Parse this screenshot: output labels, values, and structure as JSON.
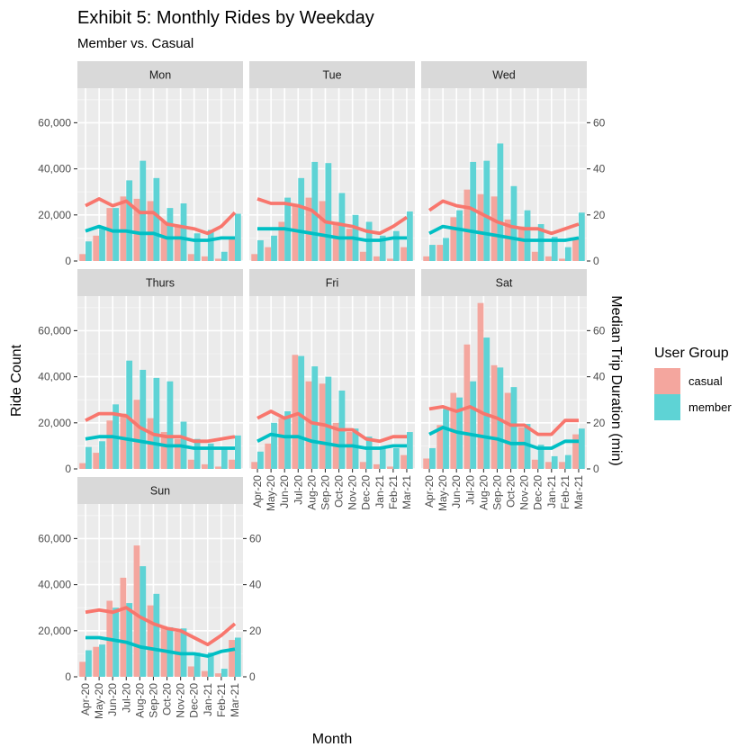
{
  "chart_data": {
    "type": "bar",
    "title": "Exhibit 5: Monthly Rides by Weekday",
    "subtitle": "Member vs. Casual",
    "xlabel": "Month",
    "ylabel": "Ride Count",
    "y2label": "Median Trip Duration (min)",
    "legend_title": "User Group",
    "legend_position": "right",
    "categories": [
      "Apr-20",
      "May-20",
      "Jun-20",
      "Jul-20",
      "Aug-20",
      "Sep-20",
      "Oct-20",
      "Nov-20",
      "Dec-20",
      "Jan-21",
      "Feb-21",
      "Mar-21"
    ],
    "ylim": [
      0,
      75000
    ],
    "y2lim": [
      0,
      75
    ],
    "yticks": [
      0,
      20000,
      40000,
      60000
    ],
    "yticklabels": [
      "0",
      "20,000",
      "40,000",
      "60,000"
    ],
    "y2ticks": [
      0,
      20,
      40,
      60
    ],
    "colors": {
      "casual": "#F8766D",
      "member": "#00BFC4",
      "casual_bar": "#F4A69E",
      "member_bar": "#5ED3D5"
    },
    "groups": [
      "casual",
      "member"
    ],
    "panels": [
      {
        "name": "Mon",
        "casual_rides": [
          3000,
          11000,
          23000,
          28000,
          27000,
          26000,
          17000,
          15000,
          3000,
          2000,
          1000,
          10000
        ],
        "member_rides": [
          8500,
          14000,
          23000,
          35000,
          43500,
          36000,
          23000,
          25000,
          12000,
          13500,
          4000,
          20500
        ],
        "casual_duration": [
          24,
          27,
          24,
          26,
          21,
          21,
          16,
          15,
          14,
          12,
          15,
          21
        ],
        "member_duration": [
          13,
          15,
          13,
          13,
          12,
          12,
          10,
          10,
          9,
          9,
          10,
          10
        ]
      },
      {
        "name": "Tue",
        "casual_rides": [
          3000,
          6000,
          17000,
          24000,
          27500,
          26000,
          17000,
          14000,
          4000,
          2000,
          1000,
          6000
        ],
        "member_rides": [
          9000,
          11000,
          27500,
          36000,
          43000,
          42500,
          29500,
          20000,
          17000,
          11000,
          13000,
          21500
        ],
        "casual_duration": [
          27,
          25,
          25,
          24,
          22,
          17,
          16,
          15,
          13,
          12,
          15,
          19
        ],
        "member_duration": [
          14,
          14,
          14,
          13,
          12,
          11,
          10,
          10,
          9,
          9,
          10,
          10
        ]
      },
      {
        "name": "Wed",
        "casual_rides": [
          2000,
          7000,
          19000,
          31000,
          29000,
          28000,
          18000,
          15000,
          4000,
          2000,
          1000,
          10000
        ],
        "member_rides": [
          7000,
          10000,
          22000,
          43000,
          43500,
          51000,
          32500,
          22000,
          16000,
          10500,
          6000,
          21000
        ],
        "casual_duration": [
          22,
          26,
          24,
          23,
          20,
          17,
          15,
          14,
          14,
          12,
          14,
          16
        ],
        "member_duration": [
          12,
          15,
          14,
          13,
          12,
          11,
          10,
          9,
          9,
          9,
          9,
          10
        ]
      },
      {
        "name": "Thurs",
        "casual_rides": [
          2500,
          7000,
          21000,
          24000,
          30000,
          22000,
          16000,
          13000,
          4000,
          2000,
          1000,
          4000
        ],
        "member_rides": [
          9500,
          12000,
          28000,
          47000,
          43000,
          39500,
          38000,
          20500,
          13000,
          11000,
          9000,
          14500
        ],
        "casual_duration": [
          21,
          24,
          24,
          23,
          18,
          15,
          14,
          14,
          12,
          12,
          13,
          14
        ],
        "member_duration": [
          13,
          14,
          14,
          13,
          12,
          11,
          10,
          10,
          9,
          9,
          9,
          9
        ]
      },
      {
        "name": "Fri",
        "casual_rides": [
          3000,
          11000,
          22000,
          49500,
          38000,
          37000,
          20000,
          16000,
          3000,
          2000,
          1000,
          6000
        ],
        "member_rides": [
          7500,
          20000,
          25000,
          49000,
          44500,
          40000,
          34000,
          17500,
          14000,
          9000,
          9000,
          16000
        ],
        "casual_duration": [
          22,
          25,
          22,
          24,
          20,
          19,
          17,
          17,
          13,
          12,
          14,
          14
        ],
        "member_duration": [
          12,
          15,
          14,
          14,
          12,
          11,
          10,
          10,
          9,
          9,
          10,
          10
        ]
      },
      {
        "name": "Sat",
        "casual_rides": [
          4500,
          19000,
          33000,
          54000,
          72000,
          45000,
          33000,
          18000,
          4000,
          3000,
          3000,
          15000
        ],
        "member_rides": [
          9000,
          26000,
          31000,
          38000,
          57000,
          44000,
          35500,
          19500,
          10500,
          5500,
          6000,
          17500
        ],
        "casual_duration": [
          26,
          27,
          25,
          27,
          24,
          22,
          19,
          19,
          15,
          15,
          21,
          21
        ],
        "member_duration": [
          15,
          18,
          16,
          15,
          14,
          13,
          11,
          11,
          9,
          9,
          12,
          12
        ]
      },
      {
        "name": "Sun",
        "casual_rides": [
          6500,
          13000,
          33000,
          43000,
          57000,
          31000,
          22000,
          19500,
          4500,
          2500,
          1500,
          16000
        ],
        "member_rides": [
          11500,
          14000,
          30000,
          32000,
          48000,
          36000,
          21500,
          21000,
          10500,
          10500,
          3500,
          17000
        ],
        "casual_duration": [
          28,
          29,
          28,
          30,
          26,
          23,
          21,
          20,
          17,
          14,
          18,
          23
        ],
        "member_duration": [
          17,
          17,
          16,
          15,
          13,
          12,
          11,
          10,
          10,
          9,
          11,
          12
        ]
      }
    ]
  }
}
